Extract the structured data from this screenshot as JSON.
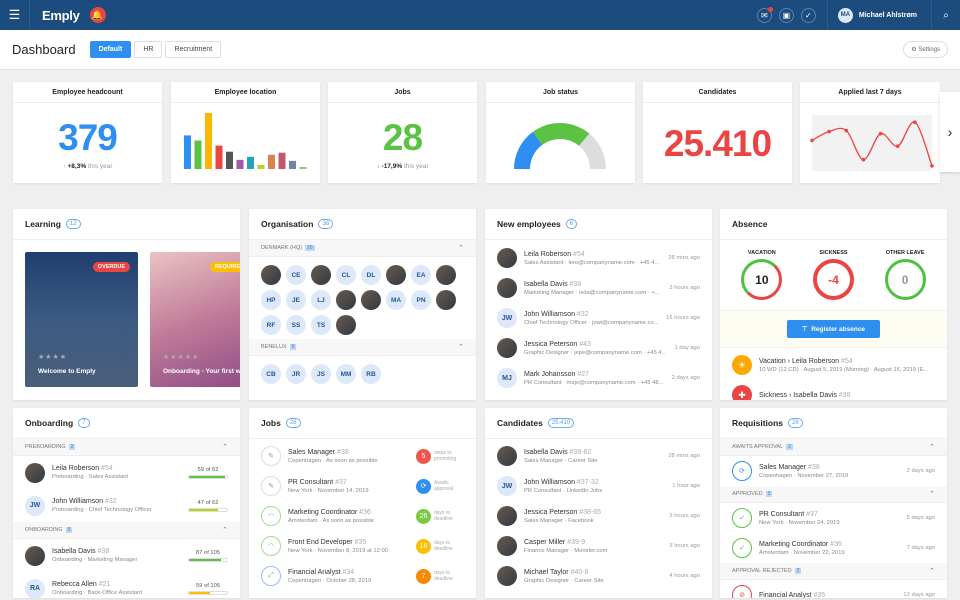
{
  "topbar": {
    "logo": "Emply",
    "user_initials": "MA",
    "user_name": "Michael Ahlstrøm"
  },
  "subbar": {
    "title": "Dashboard",
    "tabs": [
      "Default",
      "HR",
      "Recruitment"
    ],
    "active_tab": "Default",
    "settings": "Settings"
  },
  "kpis": {
    "headcount": {
      "title": "Employee headcount",
      "value": "379",
      "delta": "+8,3%",
      "delta_suffix": "this year",
      "color": "#2e8ff0"
    },
    "location": {
      "title": "Employee location"
    },
    "jobs": {
      "title": "Jobs",
      "value": "28",
      "delta": "-17,9%",
      "delta_suffix": "this year",
      "color": "#5cc244"
    },
    "job_status": {
      "title": "Job status"
    },
    "candidates": {
      "title": "Candidates",
      "value": "25.410",
      "color": "#ea4444"
    },
    "applied": {
      "title": "Applied last 7 days"
    }
  },
  "chart_data": [
    {
      "type": "bar",
      "title": "Employee location",
      "values": [
        33,
        28,
        55,
        23,
        17,
        9,
        12,
        4,
        14,
        16,
        8,
        2
      ],
      "colors": [
        "#2e8ff0",
        "#5cc244",
        "#fbb800",
        "#ea4444",
        "#555555",
        "#a05aa8",
        "#26a3b8",
        "#b7d41e",
        "#d9824a",
        "#c2566b",
        "#6f84a8",
        "#7fd36a"
      ]
    },
    {
      "type": "pie",
      "title": "Job status",
      "values": [
        30,
        42,
        28
      ],
      "colors": [
        "#2e8ff0",
        "#5cc244",
        "#dddddd"
      ]
    },
    {
      "type": "line",
      "title": "Applied last 7 days",
      "values": [
        55,
        72,
        74,
        18,
        68,
        44,
        90,
        6
      ],
      "color": "#ea4444"
    }
  ],
  "learning": {
    "title": "Learning",
    "count": "12",
    "cards": [
      {
        "title": "Welcome to Emply",
        "chip": "OVERDUE",
        "stars": "★★★★"
      },
      {
        "title": "Onboarding - Your first week",
        "chip": "REQUIRED",
        "stars": "★★★★★"
      }
    ]
  },
  "organisation": {
    "title": "Organisation",
    "count": "38",
    "groups": [
      {
        "name": "DENMARK (HQ)",
        "count": "20",
        "members": [
          "",
          "CE",
          "",
          "CL",
          "DL",
          "",
          "EA",
          "",
          "HP",
          "JE",
          "LJ",
          "",
          "",
          "MA",
          "PN",
          "",
          "RF",
          "SS",
          "TS",
          ""
        ]
      },
      {
        "name": "BENELUX",
        "count": "5",
        "members": [
          "CB",
          "JR",
          "JS",
          "MM",
          "RB"
        ]
      }
    ]
  },
  "new_employees": {
    "title": "New employees",
    "count": "6",
    "items": [
      {
        "initials": "",
        "name": "Leila Roberson",
        "id": "#54",
        "sub": "Sales Assistant · lero@companyname.com · +45 4...",
        "time": "28 mins ago"
      },
      {
        "initials": "",
        "name": "Isabella Davis",
        "id": "#38",
        "sub": "Marketing Manager · isda@companyname.com · +...",
        "time": "3 hours ago"
      },
      {
        "initials": "JW",
        "name": "John Williamson",
        "id": "#32",
        "sub": "Chief Technology Officer · jowi@companyname.co...",
        "time": "16 hours ago"
      },
      {
        "initials": "",
        "name": "Jessica Peterson",
        "id": "#43",
        "sub": "Graphic Designer · jepe@companyname.com · +45 4...",
        "time": "1 day ago"
      },
      {
        "initials": "MJ",
        "name": "Mark Johansson",
        "id": "#27",
        "sub": "PR Consultant · majo@companyname.com · +45 48...",
        "time": "2 days ago"
      }
    ]
  },
  "absence": {
    "title": "Absence",
    "gauges": [
      {
        "label": "VACATION",
        "value": "10",
        "color": "#222222"
      },
      {
        "label": "SICKNESS",
        "value": "-4",
        "color": "#ea4444"
      },
      {
        "label": "OTHER LEAVE",
        "value": "0",
        "color": "#999999"
      }
    ],
    "register": "Register absence",
    "items": [
      {
        "type": "Vacation",
        "name": "Leila Roberson",
        "id": "#54",
        "sub": "10 WD (12 CD) · August 5, 2019 (Morning) · August 16, 2019 (E...",
        "color": "#fba800"
      },
      {
        "type": "Sickness",
        "name": "Isabella Davis",
        "id": "#38",
        "sub": "",
        "color": "#ea4444"
      }
    ]
  },
  "onboarding": {
    "title": "Onboarding",
    "count": "7",
    "groups": [
      {
        "name": "PREBOARDING",
        "count": "2",
        "items": [
          {
            "initials": "",
            "name": "Leila Roberson",
            "id": "#54",
            "sub": "Preboarding · Sales Assistant",
            "progress": "59 of 62",
            "fraction": 0.95,
            "color": "#5cc244"
          },
          {
            "initials": "JW",
            "name": "John Williamson",
            "id": "#32",
            "sub": "Preboarding · Chief Technology Officer",
            "progress": "47 of 62",
            "fraction": 0.76,
            "color": "#b7d41e"
          }
        ]
      },
      {
        "name": "ONBOARDING",
        "count": "5",
        "items": [
          {
            "initials": "",
            "name": "Isabella Davis",
            "id": "#38",
            "sub": "Onboarding · Marketing Manager",
            "progress": "87 of 105",
            "fraction": 0.83,
            "color": "#5cc244"
          },
          {
            "initials": "RA",
            "name": "Rebecca Allen",
            "id": "#21",
            "sub": "Onboarding · Back-Office Assistant",
            "progress": "59 of 105",
            "fraction": 0.56,
            "color": "#fbc000"
          }
        ]
      }
    ]
  },
  "jobs": {
    "title": "Jobs",
    "count": "28",
    "items": [
      {
        "icon": "pencil-icon",
        "glyph": "✎",
        "ring": "#dddddd",
        "name": "Sales Manager",
        "id": "#38",
        "sub": "Copenhagen · As soon as possible",
        "badge": "5",
        "badge_color": "#f0554a",
        "status": "steps to promoting"
      },
      {
        "icon": "pencil-icon",
        "glyph": "✎",
        "ring": "#dddddd",
        "name": "PR Consultant",
        "id": "#37",
        "sub": "New York · November 14, 2019",
        "badge": "⟳",
        "badge_color": "#2e8ff0",
        "status": "Awaits approval"
      },
      {
        "icon": "rss-icon",
        "glyph": "◠",
        "ring": "#9fdc8f",
        "name": "Marketing Coordinator",
        "id": "#36",
        "sub": "Amsterdam · As soon as possible",
        "badge": "26",
        "badge_color": "#7ac943",
        "status": "days to deadline"
      },
      {
        "icon": "rss-icon",
        "glyph": "◠",
        "ring": "#9fdc8f",
        "name": "Front End Developer",
        "id": "#35",
        "sub": "New York · November 8, 2019 at 12:00",
        "badge": "16",
        "badge_color": "#fbc000",
        "status": "days to deadline"
      },
      {
        "icon": "expand-icon",
        "glyph": "⤢",
        "ring": "#8fc0f5",
        "name": "Financial Analyst",
        "id": "#34",
        "sub": "Copenhagen · October 28, 2019",
        "badge": "7",
        "badge_color": "#f78a00",
        "status": "days to deadline"
      }
    ]
  },
  "candidates": {
    "title": "Candidates",
    "count": "25.410",
    "items": [
      {
        "initials": "",
        "name": "Isabella Davis",
        "id": "#38-82",
        "sub": "Sales Manager · Career Site",
        "time": "28 mins ago"
      },
      {
        "initials": "JW",
        "name": "John Williamson",
        "id": "#37-32",
        "sub": "PR Consultant · LinkedIn Jobs",
        "time": "1 hour ago"
      },
      {
        "initials": "",
        "name": "Jessica Peterson",
        "id": "#38-65",
        "sub": "Sales Manager · Facebook",
        "time": "3 hours ago"
      },
      {
        "initials": "",
        "name": "Casper Miller",
        "id": "#39-9",
        "sub": "Finance Manager · Monster.com",
        "time": "3 hours ago"
      },
      {
        "initials": "",
        "name": "Michael Taylor",
        "id": "#40-8",
        "sub": "Graphic Designer · Career Site",
        "time": "4 hours ago"
      }
    ]
  },
  "requisitions": {
    "title": "Requisitions",
    "count": "28",
    "groups": [
      {
        "name": "AWAITS APPROVAL",
        "count": "2",
        "items": [
          {
            "glyph": "⟳",
            "color": "#2e8ff0",
            "icon": "refresh-icon",
            "name": "Sales Manager",
            "id": "#38",
            "sub": "Copenhagen · November 27, 2019",
            "time": "2 days ago"
          }
        ]
      },
      {
        "name": "APPROVED",
        "count": "3",
        "items": [
          {
            "glyph": "✓",
            "color": "#5cc244",
            "icon": "check-icon",
            "name": "PR Consultant",
            "id": "#37",
            "sub": "New York · November 24, 2019",
            "time": "5 days ago"
          },
          {
            "glyph": "✓",
            "color": "#5cc244",
            "icon": "check-icon",
            "name": "Marketing Coordinator",
            "id": "#36",
            "sub": "Amsterdam · November 22, 2019",
            "time": "7 days ago"
          }
        ]
      },
      {
        "name": "APPROVAL REJECTED",
        "count": "2",
        "items": [
          {
            "glyph": "⊘",
            "color": "#ea4444",
            "icon": "blocked-icon",
            "name": "Financial Analyst",
            "id": "#35",
            "sub": "",
            "time": "12 days ago"
          }
        ]
      }
    ]
  }
}
